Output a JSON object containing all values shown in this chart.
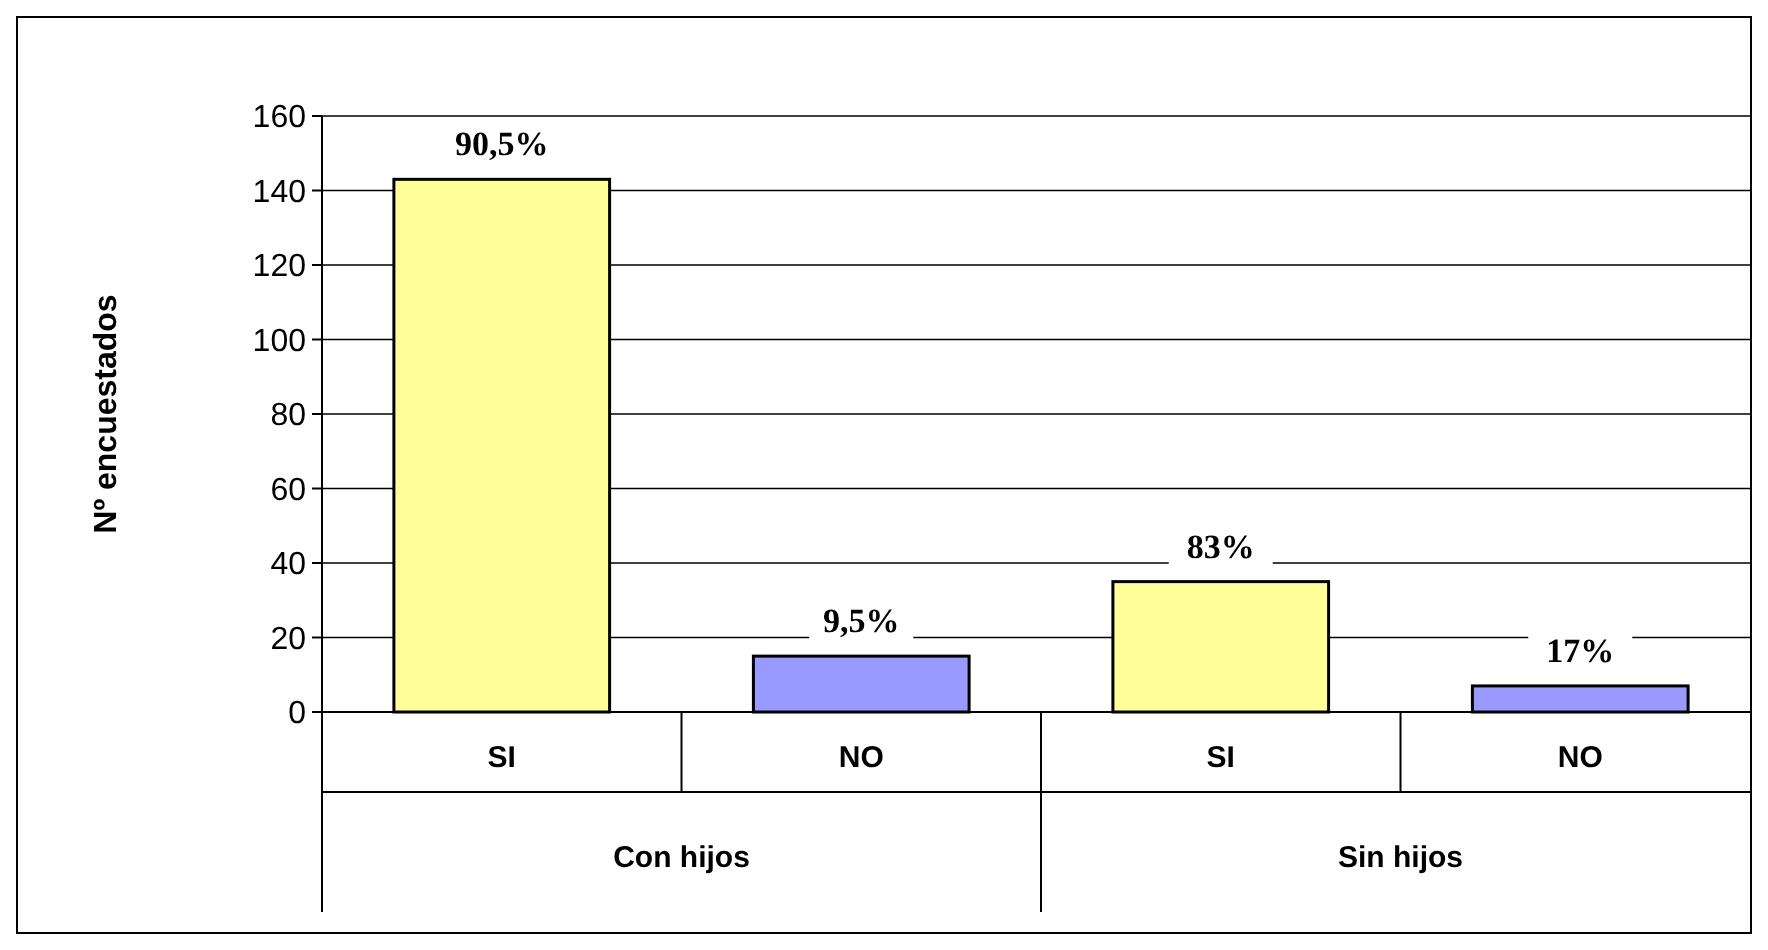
{
  "chart_data": {
    "type": "bar",
    "ylabel": "Nº encuestados",
    "categories": [
      "SI",
      "NO",
      "SI",
      "NO"
    ],
    "values": [
      143,
      15,
      35,
      7
    ],
    "colors": [
      "#ffff99",
      "#9999ff",
      "#ffff99",
      "#9999ff"
    ],
    "annotations": [
      "Con hijos",
      "Sin hijos",
      "90,5%",
      "9,5%",
      "83%",
      "17%"
    ],
    "ylim": [
      0,
      160
    ],
    "yticks": [
      0,
      20,
      40,
      60,
      80,
      100,
      120,
      140,
      160
    ],
    "grid": "y"
  }
}
